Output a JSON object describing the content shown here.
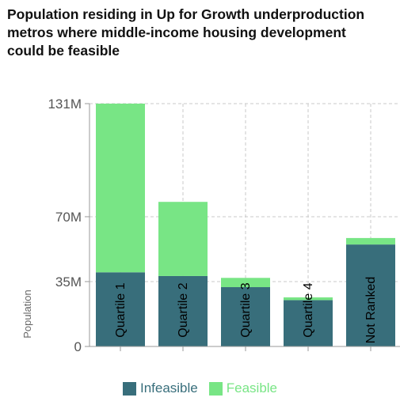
{
  "title_lines": [
    "Population residing in Up for Growth underproduction",
    "metros where middle-income housing development",
    "could be feasible"
  ],
  "colors": {
    "infeasible": "#386e7b",
    "feasible": "#78e585",
    "grid": "#c8c8c8",
    "axis": "#999999"
  },
  "chart_data": {
    "type": "bar",
    "stacked": true,
    "categories": [
      "Quartile 1",
      "Quartile 2",
      "Quartile 3",
      "Quartile 4",
      "Not Ranked"
    ],
    "series": [
      {
        "name": "Infeasible",
        "values": [
          40,
          38,
          32,
          25,
          55
        ]
      },
      {
        "name": "Feasible",
        "values": [
          91,
          40,
          5,
          1.5,
          3.5
        ]
      }
    ],
    "ylabel": "Population",
    "yticks": [
      {
        "value": 0,
        "label": "0"
      },
      {
        "value": 35,
        "label": "35M"
      },
      {
        "value": 70,
        "label": "70M"
      },
      {
        "value": 131,
        "label": "131M"
      }
    ],
    "ylim": [
      0,
      131
    ],
    "grid": true,
    "legend_position": "bottom"
  }
}
